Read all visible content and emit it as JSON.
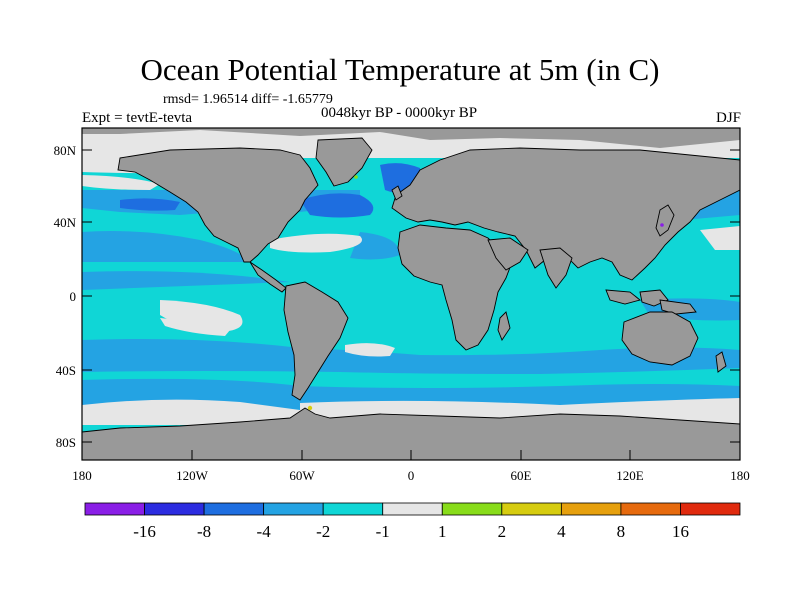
{
  "title": "Ocean Potential Temperature at 5m (in C)",
  "stats": "rmsd= 1.96514 diff= -1.65779",
  "experiment": "Expt = tevtE-tevta",
  "period": "0048kyr BP - 0000kyr BP",
  "season": "DJF",
  "lat_ticks": [
    "80N",
    "40N",
    "0",
    "40S",
    "80S"
  ],
  "lon_ticks": [
    "180",
    "120W",
    "60W",
    "0",
    "60E",
    "120E",
    "180"
  ],
  "colorbar": {
    "labels": [
      "-16",
      "-8",
      "-4",
      "-2",
      "-1",
      "1",
      "2",
      "4",
      "8",
      "16"
    ],
    "colors": [
      "#8a1ee6",
      "#2c2ce0",
      "#1e6ee0",
      "#24a3e3",
      "#10d6d6",
      "#e6e6e6",
      "#88dc1a",
      "#d6cc10",
      "#e6a00e",
      "#e66a0e",
      "#e02a0e"
    ]
  },
  "map_colors": {
    "land": "#999999",
    "cool_1": "#10d6d6",
    "cool_2": "#24a3e3",
    "cool_3": "#1e6ee0",
    "neutral": "#e6e6e6"
  }
}
